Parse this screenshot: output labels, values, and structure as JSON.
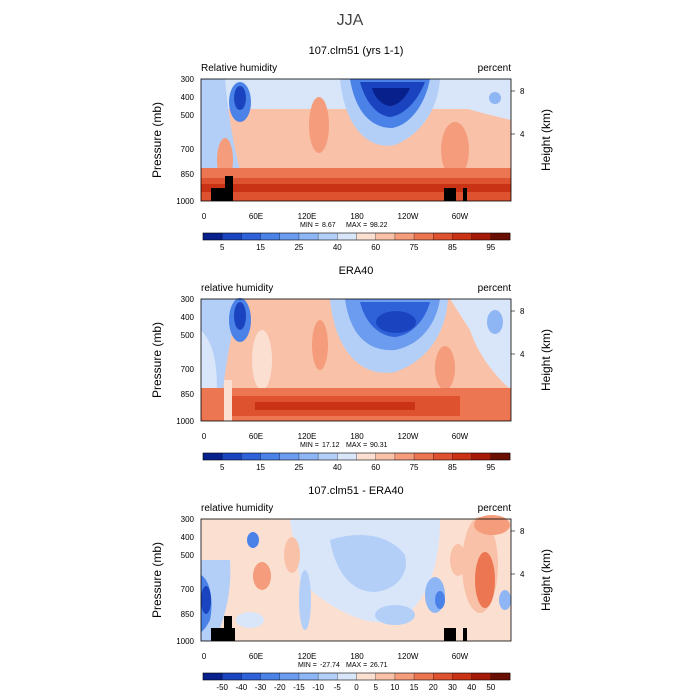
{
  "figure_title": "JJA",
  "chart_data": [
    {
      "type": "heatmap",
      "title": "107.clm51 (yrs 1-1)",
      "left_label": "Relative humidity",
      "right_label": "percent",
      "ylabel": "Pressure (mb)",
      "y2label": "Height (km)",
      "xticks": [
        "0",
        "60E",
        "120E",
        "180",
        "120W",
        "60W"
      ],
      "yticks": [
        300,
        400,
        500,
        700,
        850,
        1000
      ],
      "y2ticks": [
        "8",
        "4"
      ],
      "stats": {
        "min_label": "MIN =",
        "min": "8.67",
        "max_label": "MAX =",
        "max": "98.22"
      },
      "levels": [
        "5",
        "15",
        "25",
        "40",
        "60",
        "75",
        "85",
        "95"
      ],
      "colorbar": "positive",
      "x_range": [
        0,
        360
      ],
      "y_range_mb": [
        1000,
        300
      ],
      "regions": [
        {
          "lon": 60,
          "p": 550,
          "v": 15
        },
        {
          "lon": 165,
          "p": 420,
          "v": 10
        },
        {
          "lon": 192,
          "p": 400,
          "v": 8
        },
        {
          "lon": 310,
          "p": 400,
          "v": 30
        },
        {
          "lon": 245,
          "p": 650,
          "v": 30
        },
        {
          "lon": 20,
          "p": 900,
          "v": 85
        },
        {
          "lon": 340,
          "p": 920,
          "v": 88
        },
        {
          "lon": 100,
          "p": 600,
          "v": 65
        },
        {
          "lon": 135,
          "p": 520,
          "v": 75
        }
      ]
    },
    {
      "type": "heatmap",
      "title": "ERA40",
      "left_label": "relative humidity",
      "right_label": "percent",
      "ylabel": "Pressure (mb)",
      "y2label": "Height (km)",
      "xticks": [
        "0",
        "60E",
        "120E",
        "180",
        "120W",
        "60W"
      ],
      "yticks": [
        300,
        400,
        500,
        700,
        850,
        1000
      ],
      "y2ticks": [
        "8",
        "4"
      ],
      "stats": {
        "min_label": "MIN =",
        "min": "17.12",
        "max_label": "MAX =",
        "max": "90.31"
      },
      "levels": [
        "5",
        "15",
        "25",
        "40",
        "60",
        "75",
        "85",
        "95"
      ],
      "colorbar": "positive",
      "x_range": [
        0,
        360
      ],
      "y_range_mb": [
        1000,
        300
      ],
      "regions": [
        {
          "lon": 40,
          "p": 400,
          "v": 15
        },
        {
          "lon": 180,
          "p": 420,
          "v": 15
        },
        {
          "lon": 350,
          "p": 450,
          "v": 35
        },
        {
          "lon": 80,
          "p": 500,
          "v": 65
        },
        {
          "lon": 135,
          "p": 600,
          "v": 70
        },
        {
          "lon": 60,
          "p": 920,
          "v": 85
        },
        {
          "lon": 300,
          "p": 900,
          "v": 82
        }
      ]
    },
    {
      "type": "heatmap",
      "title": "107.clm51 - ERA40",
      "left_label": "relative humidity",
      "right_label": "percent",
      "ylabel": "Pressure (mb)",
      "y2label": "Height (km)",
      "xticks": [
        "0",
        "60E",
        "120E",
        "180",
        "120W",
        "60W"
      ],
      "yticks": [
        300,
        400,
        500,
        700,
        850,
        1000
      ],
      "y2ticks": [
        "8",
        "4"
      ],
      "stats": {
        "min_label": "MIN =",
        "min": "-27.74",
        "max_label": "MAX =",
        "max": "26.71"
      },
      "levels": [
        "-50",
        "-40",
        "-30",
        "-20",
        "-15",
        "-10",
        "-5",
        "0",
        "5",
        "10",
        "15",
        "20",
        "30",
        "40",
        "50"
      ],
      "colorbar": "difference",
      "x_range": [
        0,
        360
      ],
      "y_range_mb": [
        1000,
        300
      ],
      "regions": [
        {
          "lon": 5,
          "p": 700,
          "v": -25
        },
        {
          "lon": 350,
          "p": 380,
          "v": 25
        },
        {
          "lon": 325,
          "p": 650,
          "v": 15
        },
        {
          "lon": 70,
          "p": 600,
          "v": 10
        },
        {
          "lon": 220,
          "p": 520,
          "v": -10
        },
        {
          "lon": 280,
          "p": 650,
          "v": -12
        }
      ]
    }
  ],
  "colors": {
    "blues": [
      "#08208c",
      "#1a44bf",
      "#2f62d9",
      "#4a82e8",
      "#6b9cf0",
      "#8eb5f4",
      "#b3cff7",
      "#d9e6fa"
    ],
    "reds": [
      "#fbe0d2",
      "#f9c2a8",
      "#f49c7c",
      "#ec7552",
      "#df5230",
      "#c93215",
      "#a41a06",
      "#6b0e02"
    ],
    "terrain": "#000000"
  }
}
